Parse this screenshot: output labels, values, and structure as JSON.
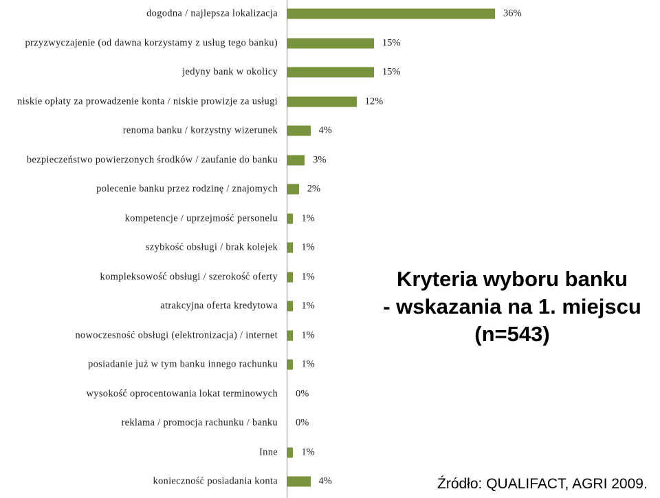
{
  "chart_data": {
    "type": "barh",
    "categories": [
      "dogodna / najlepsza lokalizacja",
      "przyzwyczajenie (od dawna korzystamy z usług tego banku)",
      "jedyny bank w okolicy",
      "niskie opłaty za prowadzenie konta / niskie prowizje za usługi",
      "renoma banku / korzystny wizerunek",
      "bezpieczeństwo powierzonych środków / zaufanie do banku",
      "polecenie banku przez rodzinę / znajomych",
      "kompetencje / uprzejmość personelu",
      "szybkość obsługi / brak kolejek",
      "kompleksowość obsługi / szerokość oferty",
      "atrakcyjna oferta kredytowa",
      "nowoczesność obsługi (elektronizacja) / internet",
      "posiadanie już w tym banku innego rachunku",
      "wysokość oprocentowania lokat terminowych",
      "reklama / promocja rachunku / banku",
      "Inne",
      "konieczność posiadania konta"
    ],
    "values": [
      36,
      15,
      15,
      12,
      4,
      3,
      2,
      1,
      1,
      1,
      1,
      1,
      1,
      0,
      0,
      1,
      4
    ],
    "value_labels": [
      "36%",
      "15%",
      "15%",
      "12%",
      "4%",
      "3%",
      "2%",
      "1%",
      "1%",
      "1%",
      "1%",
      "1%",
      "1%",
      "0%",
      "0%",
      "1%",
      "4%"
    ],
    "color": "#77933c",
    "title": [
      "Kryteria wyboru banku",
      "- wskazania na 1. miejscu",
      "(n=543)"
    ],
    "source": "Źródło: QUALIFACT, AGRI 2009."
  }
}
